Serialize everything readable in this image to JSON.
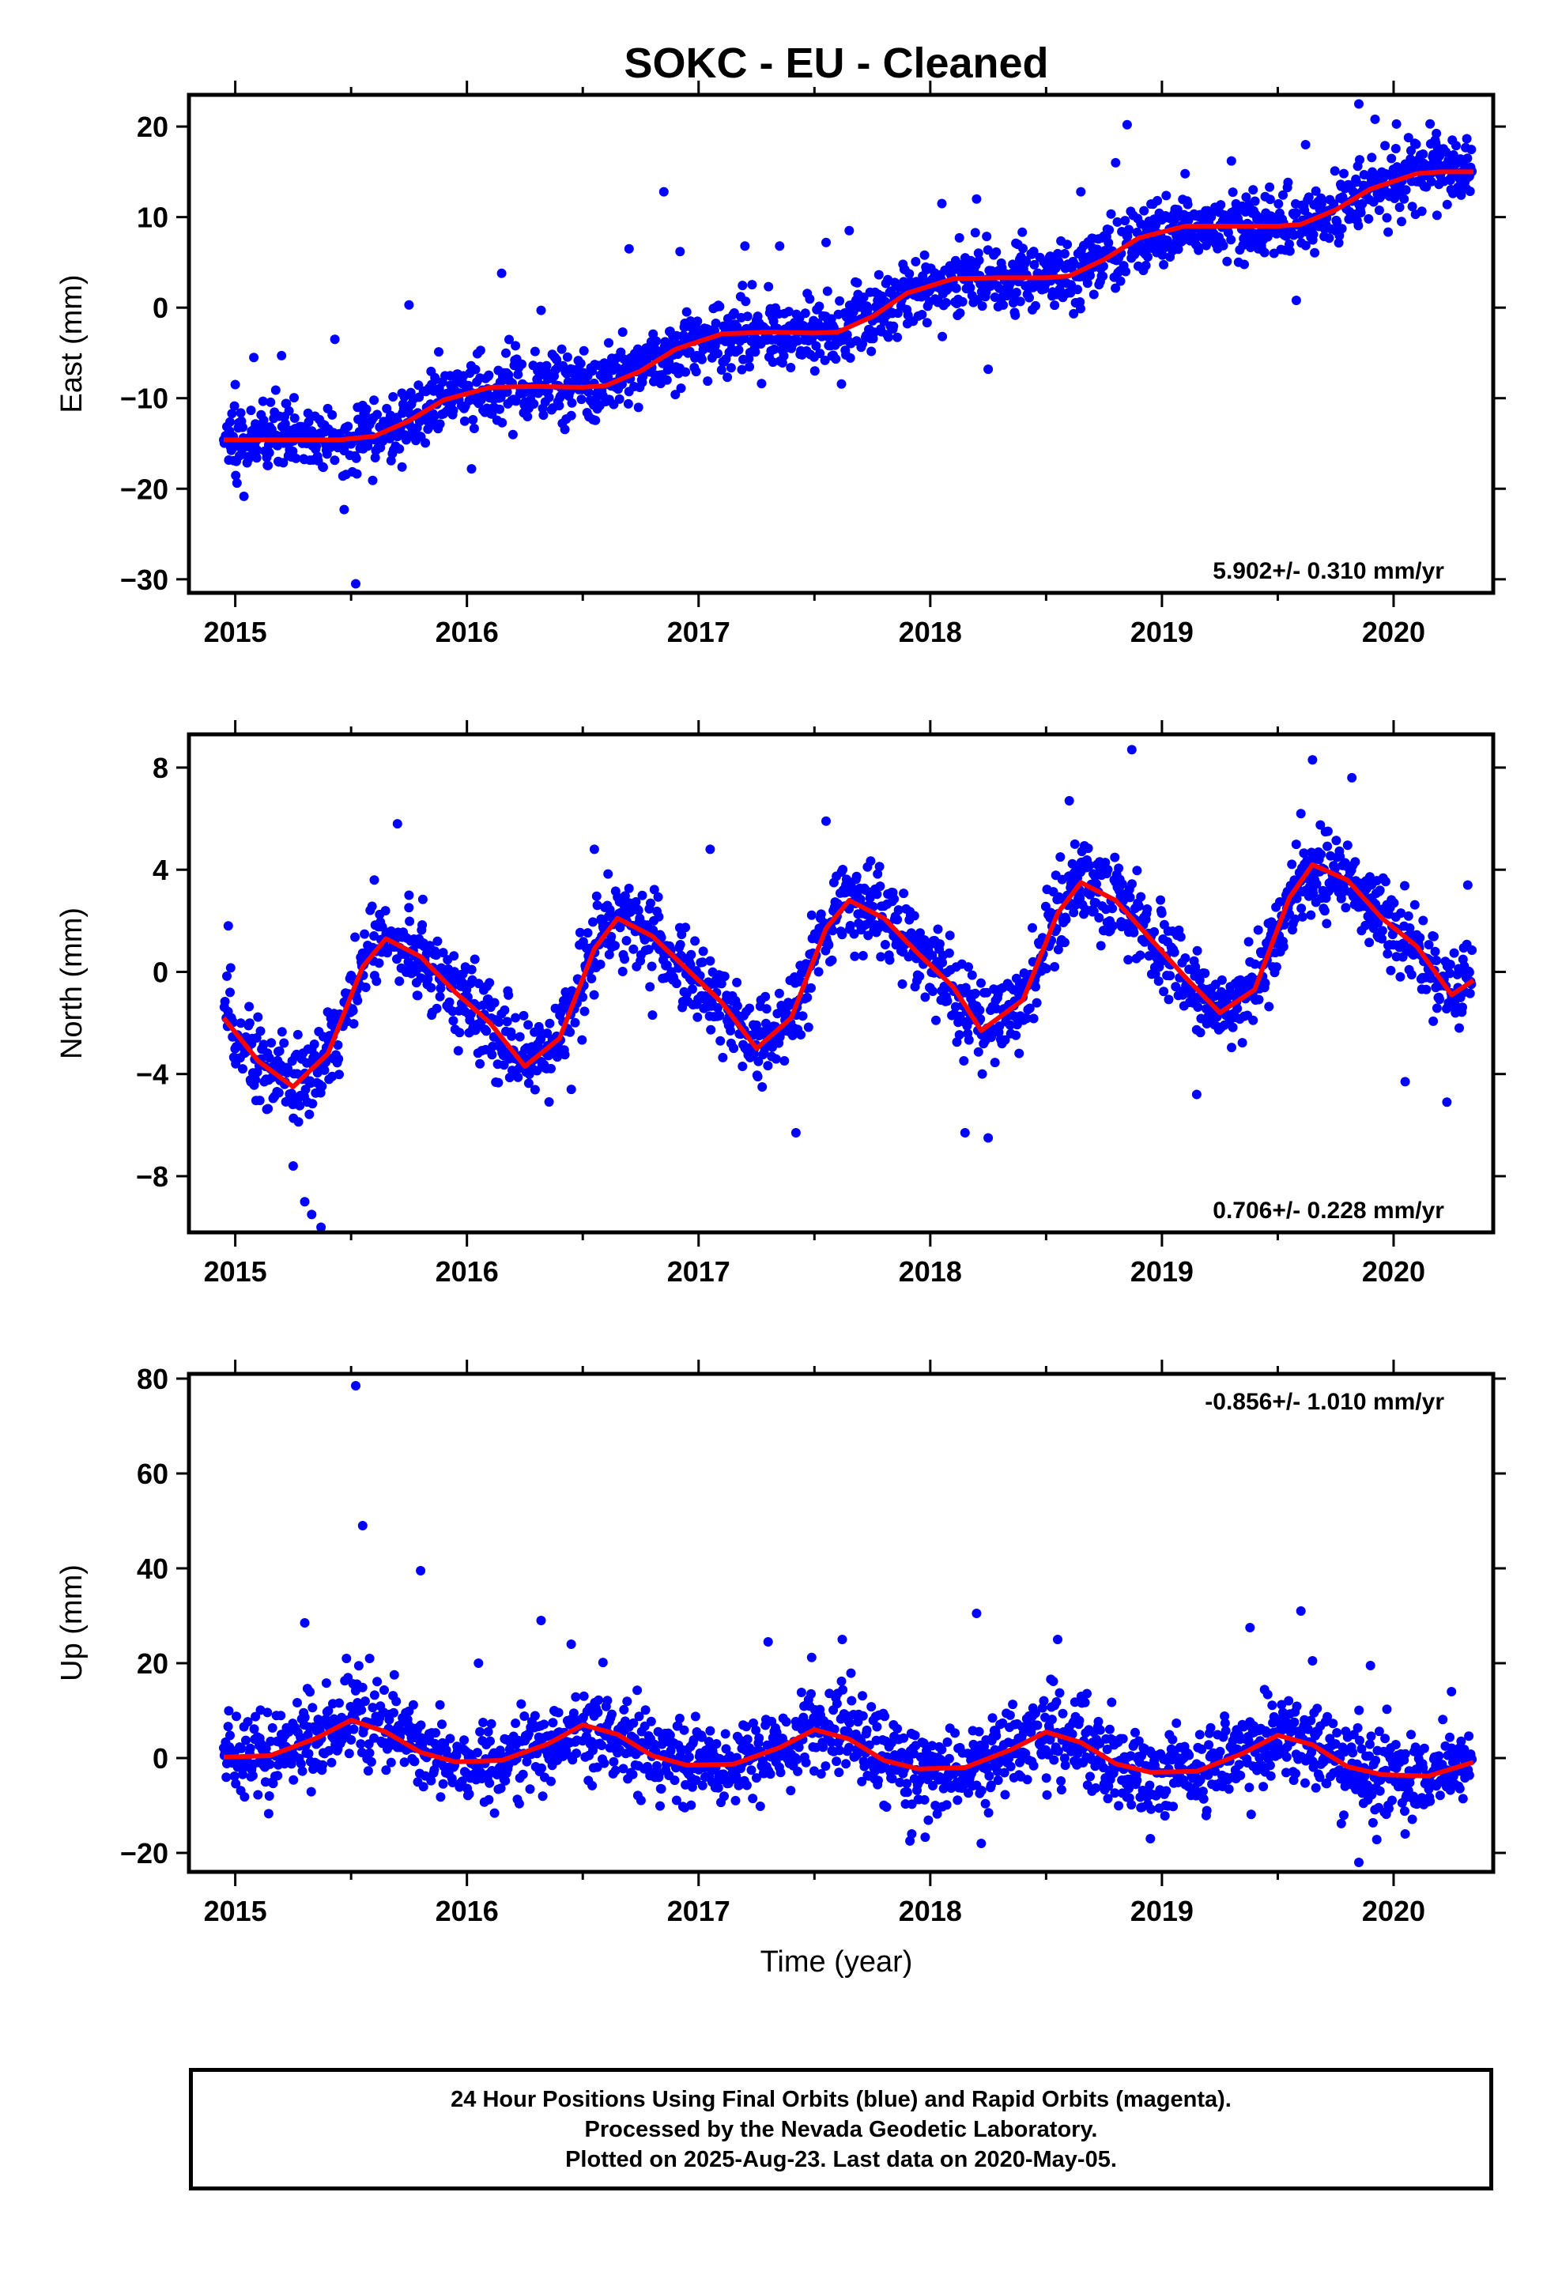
{
  "title": "SOKC  - EU - Cleaned",
  "x_axis_label": "Time (year)",
  "footer": {
    "line1": "24 Hour Positions Using Final Orbits (blue) and Rapid Orbits (magenta).",
    "line2": "Processed by the Nevada Geodetic Laboratory.",
    "line3": "Plotted on 2025-Aug-23. Last data on 2020-May-05."
  },
  "colors": {
    "data_points": "#0000ff",
    "model_curve": "#ff0000",
    "axes": "#000000"
  },
  "chart_data": [
    {
      "type": "scatter",
      "component": "East",
      "ylabel": "East (mm)",
      "rate_label": "5.902+/- 0.310 mm/yr",
      "rate_position": "bottom-right",
      "xlim": [
        2014.8,
        2020.43
      ],
      "ylim": [
        -31.5,
        23.5
      ],
      "yticks": [
        -30,
        -20,
        -10,
        0,
        10,
        20
      ],
      "xticks": [
        2015,
        2016,
        2017,
        2018,
        2019,
        2020
      ],
      "scatter_sd": 1.9,
      "model": {
        "x": [
          2014.95,
          2015.2,
          2015.45,
          2015.6,
          2015.75,
          2015.9,
          2016.1,
          2016.3,
          2016.5,
          2016.6,
          2016.75,
          2016.9,
          2017.1,
          2017.3,
          2017.5,
          2017.6,
          2017.75,
          2017.9,
          2018.1,
          2018.3,
          2018.5,
          2018.6,
          2018.75,
          2018.9,
          2019.1,
          2019.3,
          2019.5,
          2019.6,
          2019.75,
          2019.9,
          2020.1,
          2020.2,
          2020.35
        ],
        "y": [
          -14.6,
          -14.6,
          -14.6,
          -14.2,
          -12.5,
          -10.2,
          -8.8,
          -8.7,
          -8.8,
          -8.6,
          -7.0,
          -4.6,
          -2.9,
          -2.7,
          -2.8,
          -2.7,
          -1.0,
          1.6,
          3.2,
          3.3,
          3.3,
          3.5,
          5.3,
          7.7,
          9.0,
          9.0,
          9.0,
          9.2,
          10.8,
          13.1,
          14.8,
          15.0,
          15.0
        ]
      },
      "outliers": {
        "x": [
          2015.0,
          2015.08,
          2015.2,
          2015.43,
          2015.47,
          2015.52,
          2015.55,
          2015.72,
          2015.75,
          2016.15,
          2016.02,
          2016.32,
          2016.7,
          2016.85,
          2016.92,
          2017.2,
          2017.35,
          2017.55,
          2017.65,
          2018.05,
          2018.2,
          2018.25,
          2018.65,
          2018.8,
          2018.85,
          2019.1,
          2019.3,
          2019.58,
          2019.62,
          2019.85,
          2019.92
        ],
        "y": [
          -8.5,
          -5.5,
          -5.3,
          -3.5,
          -22.3,
          -30.5,
          -10.8,
          -17.6,
          0.3,
          3.8,
          -17.8,
          -0.3,
          6.5,
          12.8,
          6.2,
          6.8,
          6.8,
          7.2,
          8.5,
          11.5,
          12.0,
          -6.8,
          12.8,
          16.0,
          20.2,
          14.8,
          16.2,
          0.8,
          18.0,
          22.5,
          20.8
        ]
      }
    },
    {
      "type": "scatter",
      "component": "North",
      "ylabel": "North (mm)",
      "rate_label": "0.706+/- 0.228 mm/yr",
      "rate_position": "bottom-right",
      "xlim": [
        2014.8,
        2020.43
      ],
      "ylim": [
        -10.2,
        9.3
      ],
      "yticks": [
        -8,
        -4,
        0,
        4,
        8
      ],
      "xticks": [
        2015,
        2016,
        2017,
        2018,
        2019,
        2020
      ],
      "scatter_sd": 0.8,
      "model": {
        "x": [
          2014.95,
          2015.1,
          2015.25,
          2015.4,
          2015.55,
          2015.65,
          2015.8,
          2015.95,
          2016.1,
          2016.25,
          2016.4,
          2016.55,
          2016.65,
          2016.8,
          2016.95,
          2017.1,
          2017.25,
          2017.4,
          2017.55,
          2017.65,
          2017.8,
          2017.95,
          2018.1,
          2018.22,
          2018.4,
          2018.55,
          2018.65,
          2018.8,
          2018.95,
          2019.1,
          2019.25,
          2019.4,
          2019.55,
          2019.65,
          2019.8,
          2019.95,
          2020.1,
          2020.25,
          2020.35
        ],
        "y": [
          -1.8,
          -3.5,
          -4.5,
          -3.2,
          0.2,
          1.3,
          0.6,
          -0.8,
          -2.0,
          -3.7,
          -2.6,
          0.9,
          2.1,
          1.4,
          0.1,
          -1.2,
          -3.0,
          -1.8,
          1.7,
          2.8,
          2.1,
          0.7,
          -0.6,
          -2.3,
          -1.1,
          2.3,
          3.5,
          2.8,
          1.3,
          -0.2,
          -1.6,
          -0.7,
          2.9,
          4.2,
          3.6,
          2.1,
          1.0,
          -0.9,
          -0.3
        ]
      },
      "outliers": {
        "x": [
          2014.97,
          2015.25,
          2015.3,
          2015.33,
          2015.37,
          2015.6,
          2015.7,
          2015.75,
          2016.55,
          2017.05,
          2017.42,
          2017.55,
          2018.15,
          2018.25,
          2018.6,
          2018.87,
          2019.15,
          2019.6,
          2019.65,
          2019.82,
          2020.05,
          2020.23,
          2020.32
        ],
        "y": [
          1.8,
          -7.6,
          -9.0,
          -9.5,
          -10.0,
          3.6,
          5.8,
          3.0,
          4.8,
          4.8,
          -6.3,
          5.9,
          -6.3,
          -6.5,
          6.7,
          8.7,
          -4.8,
          6.2,
          8.3,
          7.6,
          -4.3,
          -5.1,
          3.4
        ]
      }
    },
    {
      "type": "scatter",
      "component": "Up",
      "ylabel": "Up (mm)",
      "rate_label": "-0.856+/- 1.010 mm/yr",
      "rate_position": "top-right",
      "xlim": [
        2014.8,
        2020.43
      ],
      "ylim": [
        -24,
        81
      ],
      "yticks": [
        -20,
        0,
        20,
        40,
        60,
        80
      ],
      "xticks": [
        2015,
        2016,
        2017,
        2018,
        2019,
        2020
      ],
      "scatter_sd": 4.5,
      "model": {
        "x": [
          2014.95,
          2015.15,
          2015.35,
          2015.5,
          2015.65,
          2015.8,
          2015.95,
          2016.15,
          2016.35,
          2016.5,
          2016.65,
          2016.8,
          2016.95,
          2017.15,
          2017.35,
          2017.5,
          2017.65,
          2017.8,
          2017.95,
          2018.15,
          2018.35,
          2018.5,
          2018.65,
          2018.8,
          2018.95,
          2019.15,
          2019.35,
          2019.5,
          2019.65,
          2019.8,
          2019.95,
          2020.15,
          2020.35
        ],
        "y": [
          0.2,
          0.5,
          4.2,
          8.0,
          5.5,
          1.2,
          -0.8,
          -0.5,
          3.0,
          7.0,
          5.0,
          0.5,
          -1.5,
          -1.3,
          2.2,
          6.0,
          4.0,
          -0.5,
          -2.3,
          -2.0,
          1.8,
          5.5,
          3.3,
          -1.2,
          -3.0,
          -2.8,
          1.0,
          4.8,
          2.8,
          -1.8,
          -3.5,
          -3.8,
          -0.8
        ]
      },
      "outliers": {
        "x": [
          2015.3,
          2015.48,
          2015.52,
          2015.55,
          2015.58,
          2015.8,
          2016.05,
          2016.32,
          2016.45,
          2017.3,
          2017.62,
          2017.92,
          2018.2,
          2018.22,
          2018.55,
          2018.95,
          2019.38,
          2019.6,
          2019.65,
          2019.85,
          2019.9,
          2020.05,
          2020.25
        ],
        "y": [
          28.5,
          21.0,
          78.5,
          49.0,
          21.0,
          39.5,
          20.0,
          29.0,
          24.0,
          24.5,
          25.0,
          -16.0,
          30.5,
          -18.0,
          25.0,
          -17.0,
          27.5,
          31.0,
          20.5,
          -22.0,
          19.5,
          -16.0,
          14.0
        ]
      }
    }
  ]
}
